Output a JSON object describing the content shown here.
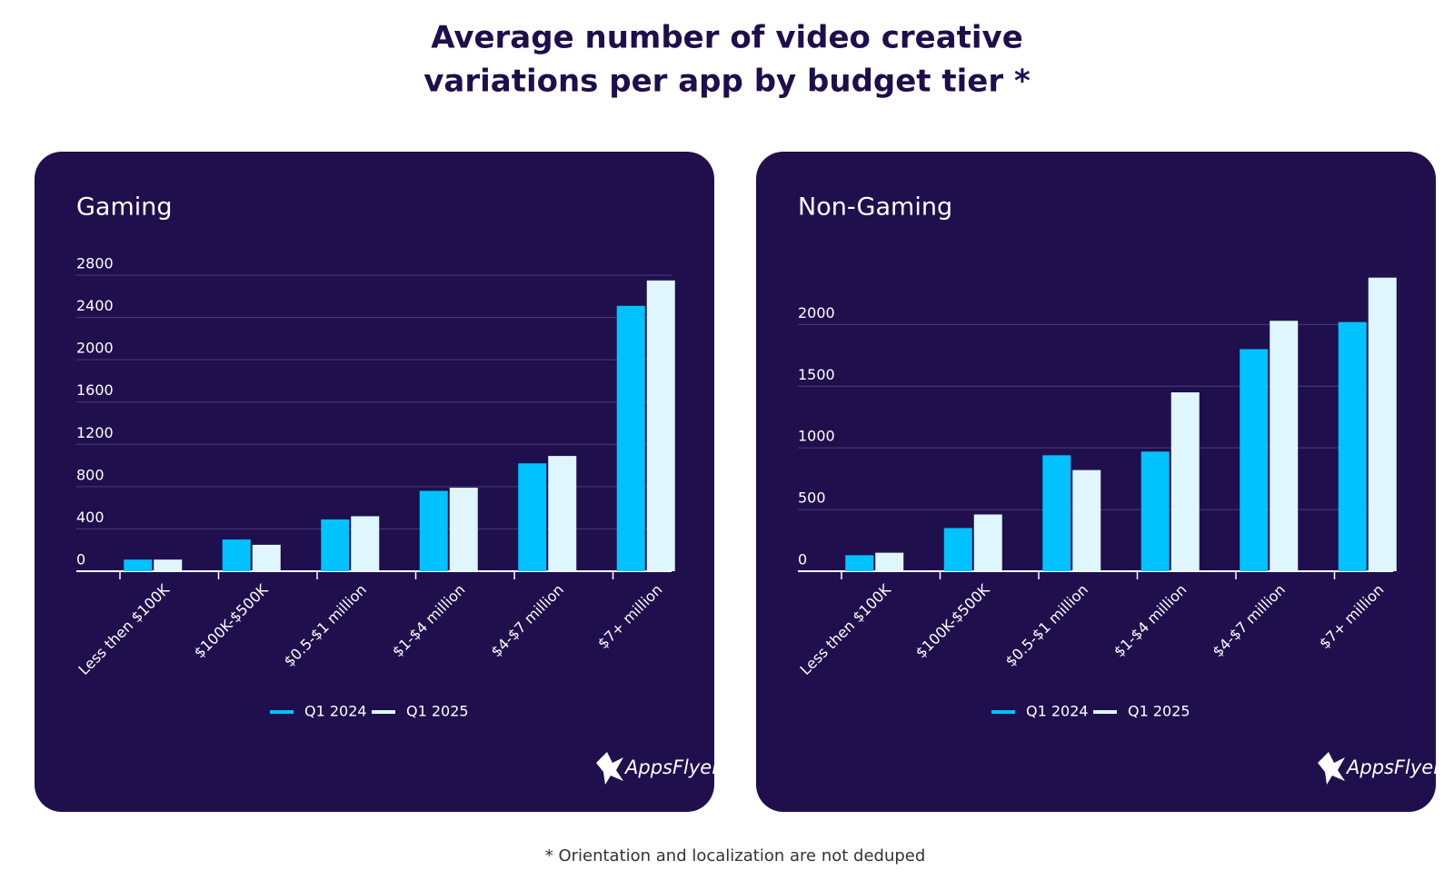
{
  "title": [
    "Average number of video creative",
    "variations per app by budget tier *"
  ],
  "footnote": "* Orientation and localization are not deduped",
  "brand": "AppsFlyer",
  "chart_data": [
    {
      "type": "bar",
      "title": "Gaming",
      "categories": [
        "Less then $100K",
        "$100K-$500K",
        "$0.5-$1 million",
        "$1-$4 million",
        "$4-$7 million",
        "$7+ million"
      ],
      "series": [
        {
          "name": "Q1 2024",
          "color": "#00c2ff",
          "values": [
            110,
            300,
            490,
            760,
            1020,
            2510
          ]
        },
        {
          "name": "Q1 2025",
          "color": "#e0f6ff",
          "values": [
            110,
            250,
            520,
            790,
            1090,
            2750
          ]
        }
      ],
      "ylim": [
        0,
        2800
      ],
      "yticks": [
        0,
        400,
        800,
        1200,
        1600,
        2000,
        2400,
        2800
      ],
      "grid": true
    },
    {
      "type": "bar",
      "title": "Non-Gaming",
      "categories": [
        "Less then $100K",
        "$100K-$500K",
        "$0.5-$1 million",
        "$1-$4 million",
        "$4-$7 million",
        "$7+ million"
      ],
      "series": [
        {
          "name": "Q1 2024",
          "color": "#00c2ff",
          "values": [
            130,
            350,
            940,
            970,
            1800,
            2020
          ]
        },
        {
          "name": "Q1 2025",
          "color": "#e0f6ff",
          "values": [
            150,
            460,
            820,
            1450,
            2030,
            2380
          ]
        }
      ],
      "ylim": [
        0,
        2400
      ],
      "yticks": [
        0,
        500,
        1000,
        1500,
        2000
      ],
      "grid": true
    }
  ]
}
